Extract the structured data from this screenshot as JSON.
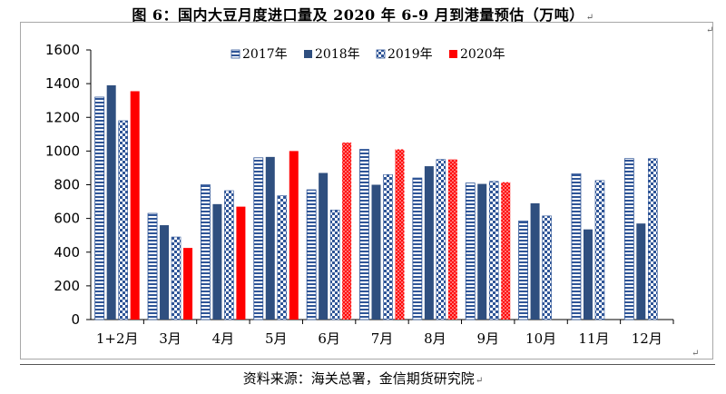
{
  "title": "图 6：国内大豆月度进口量及 2020 年 6-9 月到港量预估（万吨）",
  "source": "资料来源：海关总署，金信期货研究院",
  "colors": {
    "s2017": "#2f5597",
    "s2018": "#2f4f7f",
    "s2019": "#2f5597",
    "s2020": "#ff0000"
  },
  "chart_data": {
    "type": "bar",
    "categories": [
      "1+2月",
      "3月",
      "4月",
      "5月",
      "6月",
      "7月",
      "8月",
      "9月",
      "10月",
      "11月",
      "12月"
    ],
    "series": [
      {
        "name": "2017年",
        "pattern": "horizontal-stripes",
        "values": [
          1320,
          630,
          800,
          960,
          770,
          1010,
          840,
          810,
          585,
          865,
          955
        ]
      },
      {
        "name": "2018年",
        "pattern": "solid",
        "values": [
          1390,
          560,
          685,
          965,
          870,
          800,
          910,
          805,
          690,
          535,
          570
        ]
      },
      {
        "name": "2019年",
        "pattern": "checker",
        "values": [
          1180,
          490,
          765,
          735,
          650,
          860,
          950,
          820,
          615,
          825,
          955
        ]
      },
      {
        "name": "2020年",
        "pattern": "solid-red-dotted-for-forecast",
        "values": [
          1355,
          425,
          670,
          1000,
          1050,
          1010,
          950,
          815,
          null,
          null,
          null
        ]
      }
    ],
    "ylim": [
      0,
      1600
    ],
    "yticks": [
      "0",
      "200",
      "400",
      "600",
      "800",
      "1000",
      "1200",
      "1400",
      "1600"
    ],
    "ytick_values": [
      0,
      200,
      400,
      600,
      800,
      1000,
      1200,
      1400,
      1600
    ],
    "legend_position": "top",
    "grid": false
  }
}
